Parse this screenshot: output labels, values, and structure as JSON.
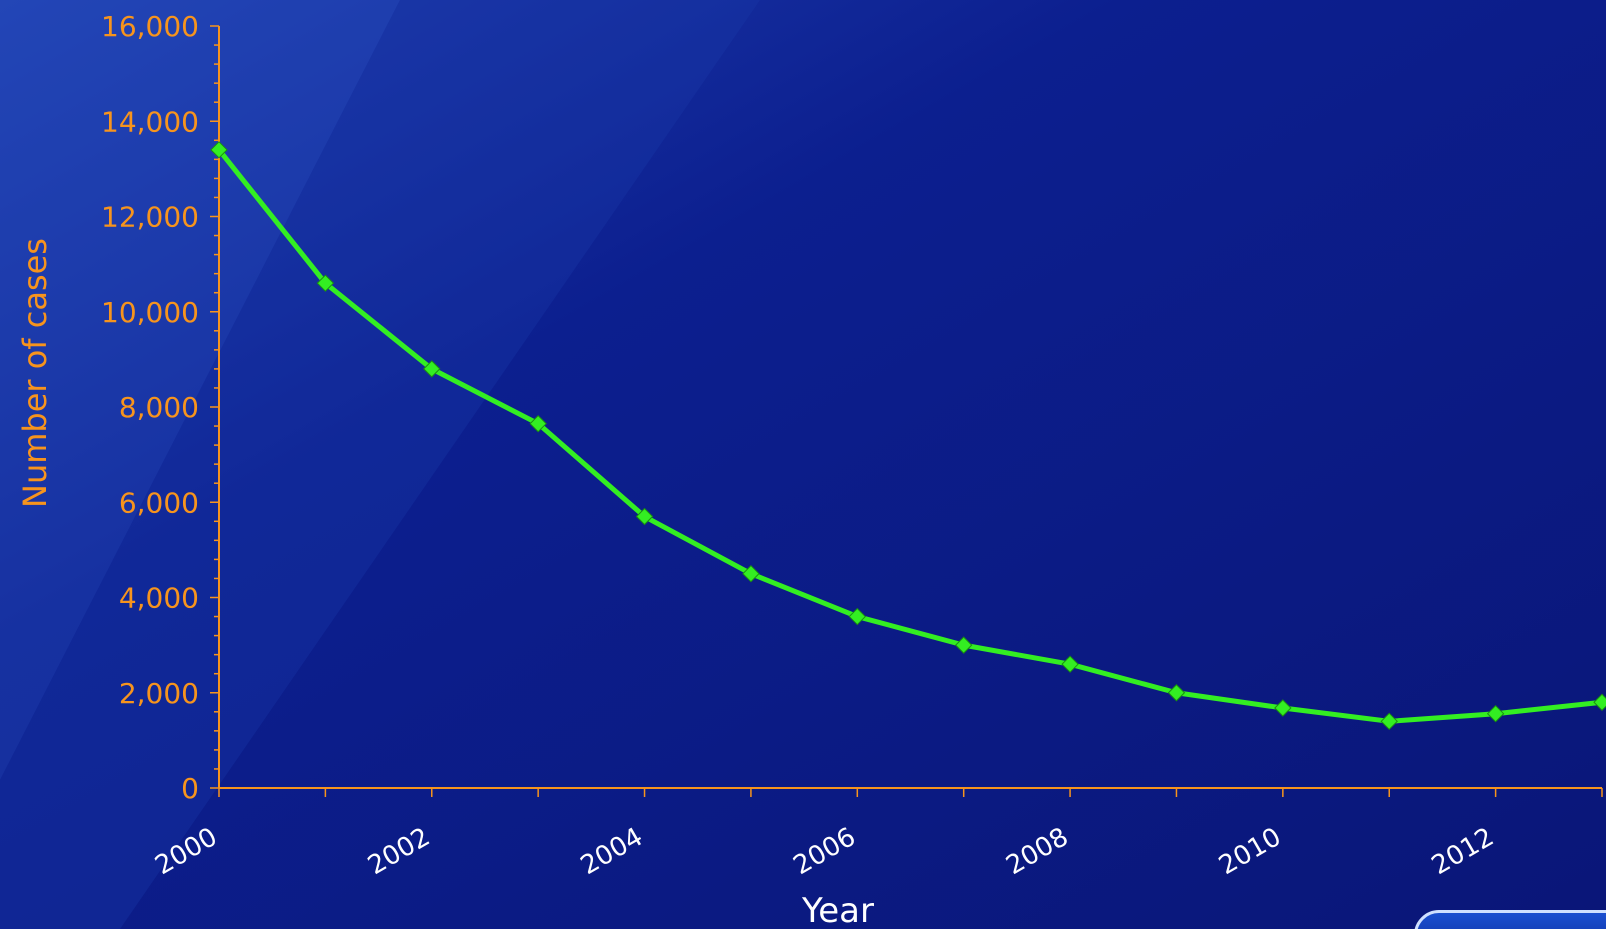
{
  "theme": {
    "background": "#0a1a86",
    "axis_color": "#f7941d",
    "tick_label_color": "#f7941d",
    "x_tick_label_color": "#ffffff",
    "xlabel_color": "#ffffff",
    "line_color": "#33ee22",
    "marker_color": "#33ee22"
  },
  "chart_data": {
    "type": "line",
    "title": "",
    "xlabel": "Year",
    "ylabel": "Number of cases",
    "x": [
      2000,
      2001,
      2002,
      2003,
      2004,
      2005,
      2006,
      2007,
      2008,
      2009,
      2010,
      2011,
      2012,
      2013
    ],
    "series": [
      {
        "name": "",
        "values": [
          13400,
          10600,
          8800,
          7650,
          5700,
          4500,
          3600,
          3000,
          2600,
          2000,
          1680,
          1400,
          1560,
          1800
        ]
      }
    ],
    "xlim": [
      2000,
      2013
    ],
    "ylim": [
      0,
      16000
    ],
    "x_tick_labels": [
      "2000",
      "2002",
      "2004",
      "2006",
      "2008",
      "2010",
      "2012"
    ],
    "y_tick_labels": [
      "0",
      "2,000",
      "4,000",
      "6,000",
      "8,000",
      "10,000",
      "12,000",
      "14,000",
      "16,000"
    ],
    "y_ticks": [
      0,
      2000,
      4000,
      6000,
      8000,
      10000,
      12000,
      14000,
      16000
    ],
    "x_ticks": [
      2000,
      2002,
      2004,
      2006,
      2008,
      2010,
      2012
    ],
    "grid": false,
    "marker": "diamond"
  }
}
